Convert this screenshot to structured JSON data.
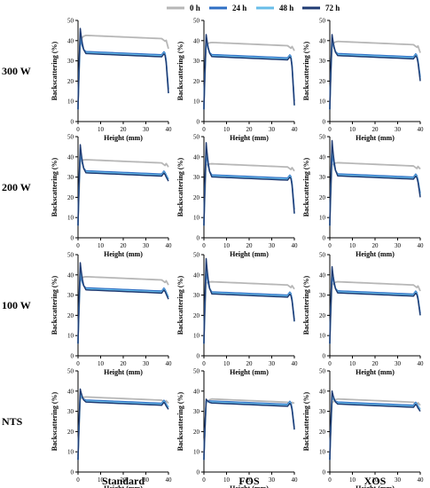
{
  "legend": [
    {
      "name": "0 h",
      "color": "#b7b7b7"
    },
    {
      "name": "24 h",
      "color": "#2f6fc4"
    },
    {
      "name": "48 h",
      "color": "#68bde8"
    },
    {
      "name": "72 h",
      "color": "#1f3b73"
    }
  ],
  "row_labels": [
    "300 W",
    "200 W",
    "100 W",
    "NTS"
  ],
  "column_labels": [
    "Standard",
    "FOS",
    "XOS"
  ],
  "chart_data": {
    "type": "line",
    "layout": "grid 4 rows x 3 columns",
    "xlabel": "Height (mm)",
    "ylabel": "Backscattering (%)",
    "xlim": [
      0,
      40
    ],
    "ylim": [
      0,
      50
    ],
    "x_ticks": [
      0,
      10,
      20,
      30,
      40
    ],
    "y_ticks": [
      0,
      10,
      20,
      30,
      40,
      50
    ],
    "series_names": [
      "0 h",
      "24 h",
      "48 h",
      "72 h"
    ],
    "panels": [
      {
        "row": "300 W",
        "column": "Standard",
        "plateau": [
          42,
          34,
          33.5,
          33
        ],
        "peak": [
          40,
          41,
          44,
          46
        ],
        "end_drop": [
          36,
          16,
          14,
          14
        ]
      },
      {
        "row": "300 W",
        "column": "FOS",
        "plateau": [
          38.5,
          32.5,
          32,
          31.5
        ],
        "peak": [
          38,
          40,
          42,
          43
        ],
        "end_drop": [
          35,
          10,
          8,
          8
        ]
      },
      {
        "row": "300 W",
        "column": "XOS",
        "plateau": [
          39,
          33,
          32.5,
          32
        ],
        "peak": [
          38,
          40,
          42,
          43
        ],
        "end_drop": [
          34,
          22,
          21,
          20
        ]
      },
      {
        "row": "200 W",
        "column": "Standard",
        "plateau": [
          38,
          32.5,
          32,
          31.5
        ],
        "peak": [
          38,
          42,
          44,
          46
        ],
        "end_drop": [
          35,
          29,
          29,
          28
        ]
      },
      {
        "row": "200 W",
        "column": "FOS",
        "plateau": [
          36,
          30.5,
          30,
          29.5
        ],
        "peak": [
          36,
          42,
          45,
          47
        ],
        "end_drop": [
          33,
          14,
          12,
          12
        ]
      },
      {
        "row": "200 W",
        "column": "XOS",
        "plateau": [
          36.5,
          31,
          30.5,
          30
        ],
        "peak": [
          36,
          42,
          46,
          48
        ],
        "end_drop": [
          34,
          22,
          21,
          20
        ]
      },
      {
        "row": "100 W",
        "column": "Standard",
        "plateau": [
          38.5,
          33,
          32.5,
          32
        ],
        "peak": [
          38,
          40,
          43,
          46
        ],
        "end_drop": [
          35,
          29,
          29,
          28
        ]
      },
      {
        "row": "100 W",
        "column": "FOS",
        "plateau": [
          36,
          31,
          30.5,
          30
        ],
        "peak": [
          36,
          42,
          46,
          48
        ],
        "end_drop": [
          33,
          18,
          17,
          17
        ]
      },
      {
        "row": "100 W",
        "column": "XOS",
        "plateau": [
          36,
          31.5,
          31,
          30.5
        ],
        "peak": [
          35,
          40,
          43,
          44
        ],
        "end_drop": [
          32,
          21,
          20,
          20
        ]
      },
      {
        "row": "NTS",
        "column": "Standard",
        "plateau": [
          36.5,
          35,
          34.5,
          34
        ],
        "peak": [
          36,
          38,
          39,
          41
        ],
        "end_drop": [
          34,
          32,
          32,
          31
        ]
      },
      {
        "row": "NTS",
        "column": "FOS",
        "plateau": [
          35.5,
          34.5,
          34,
          33.5
        ],
        "peak": [
          34,
          35,
          35,
          36
        ],
        "end_drop": [
          34,
          22,
          21,
          21
        ]
      },
      {
        "row": "NTS",
        "column": "XOS",
        "plateau": [
          35.5,
          34,
          33.5,
          33
        ],
        "peak": [
          34,
          37,
          38,
          40
        ],
        "end_drop": [
          33,
          31,
          31,
          30
        ]
      }
    ]
  }
}
